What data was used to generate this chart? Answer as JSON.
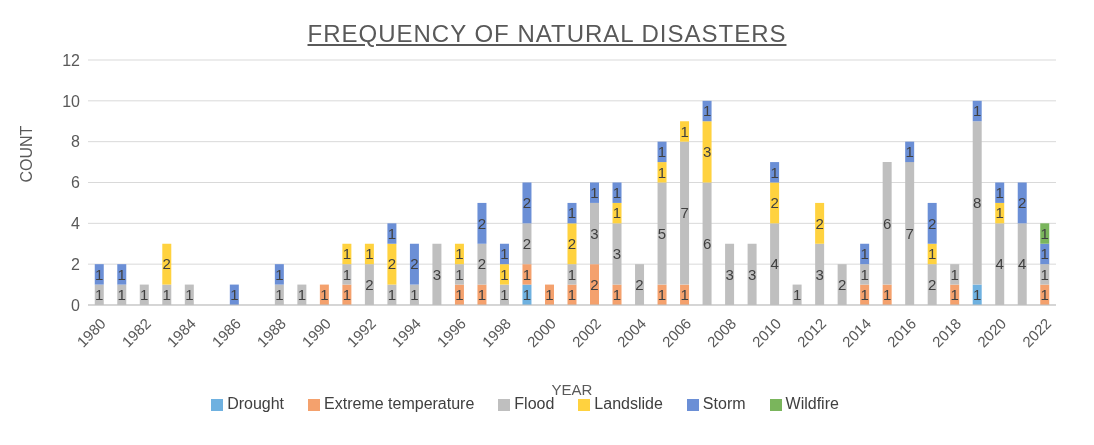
{
  "chart_data": {
    "type": "bar",
    "title": "FREQUENCY OF NATURAL DISASTERS",
    "xlabel": "YEAR",
    "ylabel": "COUNT",
    "stacked": true,
    "data_labels": true,
    "grid": "y",
    "legend": "bottom",
    "ylim": [
      0,
      12
    ],
    "yticks": [
      0,
      2,
      4,
      6,
      8,
      10,
      12
    ],
    "categories": [
      "1980",
      null,
      "1982",
      null,
      "1984",
      null,
      "1986",
      null,
      "1988",
      null,
      "1990",
      null,
      "1992",
      null,
      "1994",
      null,
      "1996",
      null,
      "1998",
      null,
      "2000",
      null,
      "2002",
      null,
      "2004",
      null,
      "2006",
      null,
      "2008",
      null,
      "2010",
      null,
      "2012",
      null,
      "2014",
      null,
      "2016",
      null,
      "2018",
      null,
      "2020",
      null,
      "2022"
    ],
    "series": [
      {
        "name": "Drought",
        "color": "#6fb1e0",
        "values": [
          null,
          null,
          null,
          null,
          null,
          null,
          null,
          null,
          null,
          null,
          null,
          null,
          null,
          null,
          null,
          null,
          null,
          null,
          null,
          1,
          null,
          null,
          null,
          null,
          null,
          null,
          null,
          null,
          null,
          null,
          null,
          null,
          null,
          null,
          null,
          null,
          null,
          null,
          null,
          1,
          null,
          null,
          null
        ]
      },
      {
        "name": "Extreme temperature",
        "color": "#f4a16d",
        "values": [
          null,
          null,
          null,
          null,
          null,
          null,
          null,
          null,
          null,
          null,
          1,
          1,
          null,
          null,
          null,
          null,
          1,
          1,
          null,
          1,
          1,
          1,
          2,
          1,
          null,
          1,
          1,
          null,
          null,
          null,
          null,
          null,
          null,
          null,
          1,
          1,
          null,
          null,
          1,
          null,
          null,
          null,
          1
        ]
      },
      {
        "name": "Flood",
        "color": "#bfbfbf",
        "values": [
          1,
          1,
          1,
          1,
          1,
          null,
          null,
          null,
          1,
          1,
          null,
          1,
          2,
          1,
          1,
          3,
          1,
          2,
          1,
          2,
          null,
          1,
          3,
          3,
          2,
          5,
          7,
          6,
          3,
          3,
          4,
          1,
          3,
          2,
          1,
          6,
          7,
          2,
          1,
          8,
          4,
          4,
          1
        ]
      },
      {
        "name": "Landslide",
        "color": "#ffd23f",
        "values": [
          null,
          null,
          null,
          2,
          null,
          null,
          null,
          null,
          null,
          null,
          null,
          1,
          1,
          2,
          null,
          null,
          1,
          null,
          1,
          null,
          null,
          2,
          null,
          1,
          null,
          1,
          1,
          3,
          null,
          null,
          2,
          null,
          2,
          null,
          null,
          null,
          null,
          1,
          null,
          null,
          1,
          null,
          null
        ]
      },
      {
        "name": "Storm",
        "color": "#6b8fd6",
        "values": [
          1,
          1,
          null,
          null,
          null,
          null,
          1,
          null,
          1,
          null,
          null,
          null,
          null,
          1,
          2,
          null,
          null,
          2,
          1,
          2,
          null,
          1,
          1,
          1,
          null,
          1,
          null,
          1,
          null,
          null,
          1,
          null,
          null,
          null,
          1,
          null,
          1,
          2,
          null,
          1,
          1,
          2,
          1
        ]
      },
      {
        "name": "Wildfire",
        "color": "#7ab55c",
        "values": [
          null,
          null,
          null,
          null,
          null,
          null,
          null,
          null,
          null,
          null,
          null,
          null,
          null,
          null,
          null,
          null,
          null,
          null,
          null,
          null,
          null,
          null,
          null,
          null,
          null,
          null,
          null,
          null,
          null,
          null,
          null,
          null,
          null,
          null,
          null,
          null,
          null,
          null,
          null,
          null,
          null,
          null,
          1
        ]
      }
    ]
  }
}
